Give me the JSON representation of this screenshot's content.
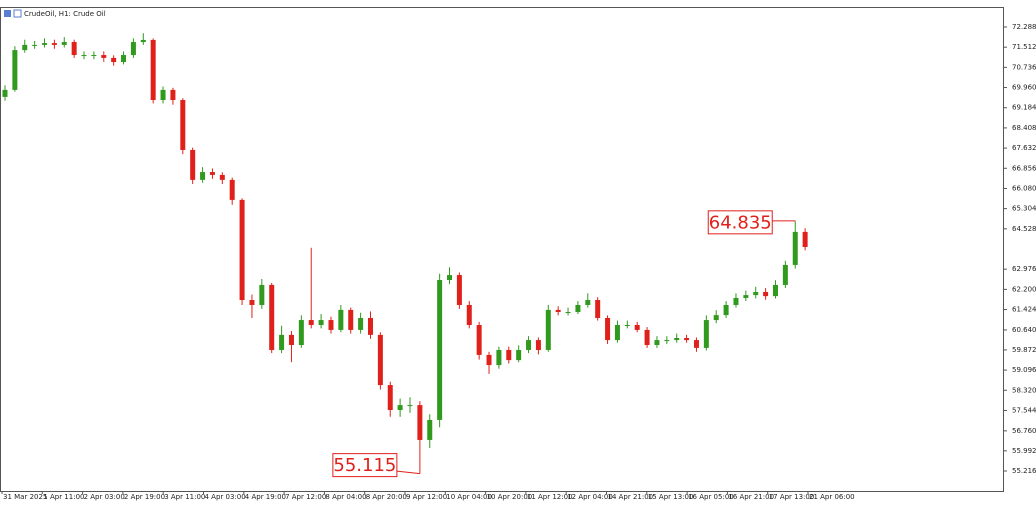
{
  "chart_data": {
    "type": "candlestick",
    "title": "CrudeOil, H1: Crude Oil",
    "x_labels": [
      "31 Mar 2025",
      "1 Apr 11:00",
      "2 Apr 03:00",
      "2 Apr 19:00",
      "3 Apr 11:00",
      "4 Apr 03:00",
      "4 Apr 19:00",
      "7 Apr 12:00",
      "8 Apr 04:00",
      "8 Apr 20:00",
      "9 Apr 12:00",
      "10 Apr 04:00",
      "10 Apr 20:00",
      "11 Apr 12:00",
      "12 Apr 04:00",
      "14 Apr 21:00",
      "15 Apr 13:00",
      "16 Apr 05:00",
      "16 Apr 21:00",
      "17 Apr 13:00",
      "21 Apr 06:00"
    ],
    "open": [
      69.6,
      69.87,
      71.4,
      71.6,
      71.6,
      71.67,
      71.6,
      71.71,
      71.21,
      71.21,
      71.21,
      71.1,
      70.94,
      71.21,
      71.71,
      71.79,
      69.48,
      69.87,
      69.48,
      67.56,
      66.41,
      66.71,
      66.6,
      66.41,
      65.64,
      61.79,
      61.6,
      62.37,
      59.87,
      60.45,
      60.06,
      61.02,
      60.83,
      61.02,
      60.64,
      61.41,
      60.64,
      61.1,
      60.45,
      58.52,
      57.56,
      57.75,
      57.75,
      56.41,
      57.18,
      62.56,
      62.75,
      61.6,
      60.83,
      59.68,
      59.29,
      59.87,
      59.48,
      59.87,
      60.25,
      59.87,
      61.41,
      61.33,
      61.33,
      61.6,
      61.79,
      61.1,
      60.25,
      60.83,
      60.83,
      60.64,
      60.06,
      60.25,
      60.25,
      60.33,
      60.25,
      59.95,
      61.02,
      61.21,
      61.6,
      61.87,
      61.98,
      62.1,
      61.94,
      62.37,
      63.14,
      64.41
    ],
    "high": [
      70.05,
      71.55,
      71.8,
      71.75,
      71.85,
      71.8,
      71.9,
      71.8,
      71.35,
      71.35,
      71.35,
      71.2,
      71.35,
      71.85,
      72.05,
      71.85,
      70.0,
      69.95,
      69.55,
      67.65,
      66.9,
      66.85,
      66.7,
      66.5,
      65.7,
      62.0,
      62.6,
      62.45,
      60.8,
      60.6,
      61.2,
      63.8,
      61.25,
      61.15,
      61.6,
      61.5,
      61.3,
      61.35,
      60.55,
      58.65,
      58.0,
      58.05,
      57.9,
      57.4,
      62.8,
      63.05,
      62.85,
      61.75,
      60.95,
      59.8,
      60.0,
      60.0,
      60.05,
      60.4,
      60.35,
      61.6,
      61.55,
      61.5,
      61.75,
      62.05,
      61.9,
      61.2,
      61.0,
      61.0,
      60.95,
      60.75,
      60.4,
      60.4,
      60.5,
      60.45,
      60.35,
      61.2,
      61.4,
      61.75,
      62.05,
      62.15,
      62.3,
      62.25,
      62.55,
      63.3,
      64.835,
      64.55
    ],
    "low": [
      69.45,
      69.8,
      71.3,
      71.45,
      71.5,
      71.45,
      71.5,
      71.1,
      71.05,
      71.05,
      70.95,
      70.8,
      70.85,
      71.1,
      71.6,
      69.35,
      69.35,
      69.3,
      67.4,
      66.25,
      66.3,
      66.45,
      66.25,
      65.45,
      61.6,
      61.1,
      61.45,
      59.75,
      59.75,
      59.4,
      59.95,
      60.7,
      60.7,
      60.5,
      60.55,
      60.5,
      60.5,
      60.3,
      58.35,
      57.3,
      57.3,
      57.45,
      55.115,
      56.1,
      56.9,
      62.4,
      61.45,
      60.7,
      59.5,
      58.95,
      59.15,
      59.35,
      59.4,
      59.75,
      59.7,
      59.8,
      61.2,
      61.2,
      61.25,
      61.5,
      61.0,
      60.1,
      60.15,
      60.7,
      60.55,
      59.95,
      59.95,
      60.1,
      60.15,
      60.15,
      59.8,
      59.85,
      60.9,
      61.1,
      61.5,
      61.75,
      61.85,
      61.8,
      61.85,
      62.25,
      63.0,
      63.7
    ],
    "close": [
      69.87,
      71.4,
      71.6,
      71.6,
      71.67,
      71.6,
      71.71,
      71.21,
      71.21,
      71.21,
      71.1,
      70.94,
      71.21,
      71.71,
      71.79,
      69.48,
      69.87,
      69.48,
      67.56,
      66.41,
      66.71,
      66.6,
      66.41,
      65.64,
      61.79,
      61.6,
      62.37,
      59.87,
      60.45,
      60.06,
      61.02,
      60.83,
      61.02,
      60.64,
      61.41,
      60.64,
      61.1,
      60.45,
      58.52,
      57.56,
      57.75,
      57.75,
      56.41,
      57.18,
      62.56,
      62.75,
      61.6,
      60.83,
      59.68,
      59.29,
      59.87,
      59.48,
      59.87,
      60.25,
      59.87,
      61.41,
      61.33,
      61.33,
      61.6,
      61.79,
      61.1,
      60.25,
      60.83,
      60.83,
      60.64,
      60.06,
      60.25,
      60.25,
      60.33,
      60.25,
      59.95,
      61.02,
      61.21,
      61.6,
      61.87,
      61.98,
      62.1,
      61.94,
      62.37,
      63.14,
      64.41,
      63.83
    ],
    "up_color": "#2f9a1e",
    "down_color": "#e0201b",
    "annotation_color": "#e0201b",
    "ylim": [
      54.447,
      73.057
    ],
    "yticks": [
      72.288,
      71.512,
      70.736,
      {
        "value": 69.96,
        "label": "69.960"
      },
      69.184,
      68.408,
      67.632,
      66.856,
      {
        "value": 66.08,
        "label": "66.080"
      },
      65.304,
      64.528,
      62.976,
      {
        "value": 62.2,
        "label": "62.200"
      },
      61.424,
      {
        "value": 60.64,
        "label": "60.640"
      },
      59.872,
      59.096,
      {
        "value": 58.32,
        "label": "58.320"
      },
      57.544,
      {
        "value": 56.76,
        "label": "56.760"
      },
      55.992,
      55.216
    ],
    "annotations": [
      55.115,
      64.835
    ]
  }
}
